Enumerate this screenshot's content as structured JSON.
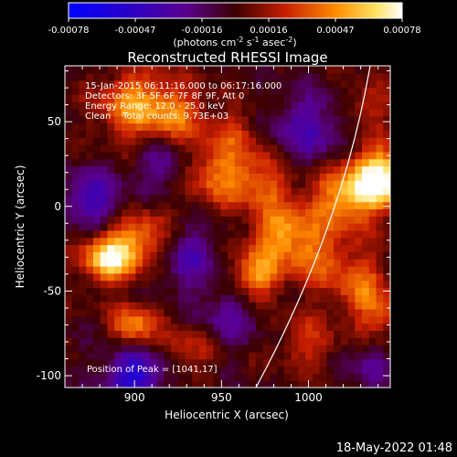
{
  "chart_data": {
    "type": "heatmap",
    "title": "Reconstructed RHESSI Image",
    "xlabel": "Heliocentric X (arcsec)",
    "ylabel": "Heliocentric Y (arcsec)",
    "xlim": [
      860,
      1047
    ],
    "ylim": [
      -107,
      83
    ],
    "xticks": [
      900,
      950,
      1000
    ],
    "yticks": [
      -100,
      -50,
      0,
      50
    ],
    "colorbar": {
      "ticks": [
        "-0.00078",
        "-0.00047",
        "-0.00016",
        "0.00016",
        "0.00047",
        "0.00078"
      ],
      "units_prefix": "(photons cm",
      "units_exp1": "-2",
      "units_mid1": " s",
      "units_exp2": "-1",
      "units_mid2": " asec",
      "units_exp3": "-2",
      "units_suffix": ")",
      "range": [
        -0.00078,
        0.00078
      ]
    },
    "annotations": [
      "15-Jan-2015 06:11:16.000 to 06:17:16.000",
      "Detectors: 3F 5F 6F 7F 8F 9F, Att 0",
      "Energy Range: 12.0 - 25.0 keV",
      "Clean    Total counts: 9.73E+03"
    ],
    "peak_label": "Position of Peak = [1041,17]",
    "peak": [
      1041,
      17
    ],
    "grid": false
  },
  "footer": {
    "date": "18-May-2022 01:48"
  },
  "colors": {
    "background": "#000000",
    "text": "#ffffff"
  }
}
